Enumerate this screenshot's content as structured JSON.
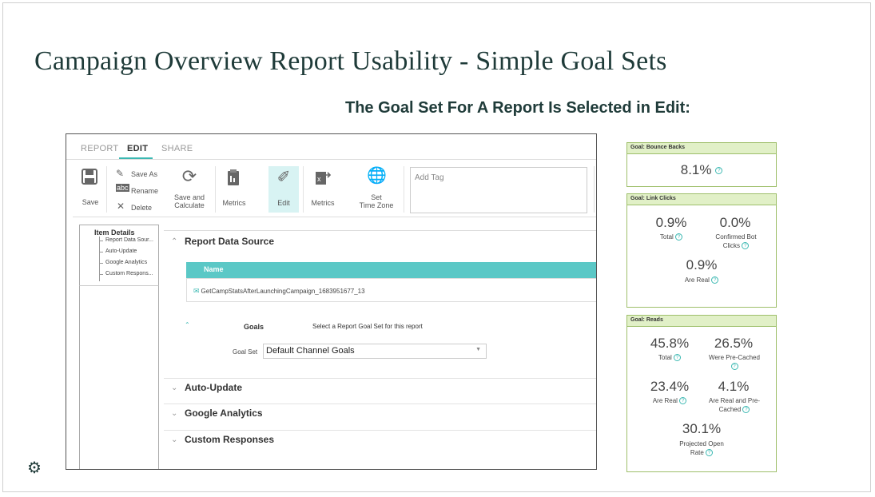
{
  "slide": {
    "title": "Campaign Overview Report Usability - Simple Goal Sets",
    "subtitle": "The Goal Set For A Report Is Selected in Edit:"
  },
  "app": {
    "tabs": [
      {
        "label": "REPORT",
        "active": false
      },
      {
        "label": "EDIT",
        "active": true
      },
      {
        "label": "SHARE",
        "active": false
      }
    ],
    "toolbar": {
      "save": "Save",
      "save_as": "Save As",
      "rename": "Rename",
      "delete": "Delete",
      "save_and_calculate_1": "Save and",
      "save_and_calculate_2": "Calculate",
      "metrics": "Metrics",
      "edit": "Edit",
      "metrics_2": "Metrics",
      "set_time_zone_1": "Set",
      "set_time_zone_2": "Time Zone",
      "add_tag_placeholder": "Add Tag"
    },
    "item_details": {
      "title": "Item Details",
      "items": [
        "Report Data Sour...",
        "Auto-Update",
        "Google Analytics",
        "Custom Respons..."
      ]
    },
    "sections": {
      "report_data_source": "Report Data Source",
      "table_header": "Name",
      "table_row": "GetCampStatsAfterLaunchingCampaign_1683951677_13",
      "goals_label": "Goals",
      "goals_desc": "Select a Report Goal Set for this report",
      "goal_set_label": "Goal Set",
      "goal_set_value": "Default Channel Goals",
      "auto_update": "Auto-Update",
      "google_analytics": "Google Analytics",
      "custom_responses": "Custom Responses"
    }
  },
  "goal_boxes": {
    "bounce": {
      "title": "Goal: Bounce Backs",
      "value": "8.1%"
    },
    "clicks": {
      "title": "Goal: Link Clicks",
      "total_value": "0.9%",
      "total_label": "Total",
      "bot_value": "0.0%",
      "bot_label_1": "Confirmed Bot",
      "bot_label_2": "Clicks",
      "real_value": "0.9%",
      "real_label": "Are Real"
    },
    "reads": {
      "title": "Goal: Reads",
      "total_value": "45.8%",
      "total_label": "Total",
      "precached_value": "26.5%",
      "precached_label": "Were Pre-Cached",
      "real_value": "23.4%",
      "real_label": "Are Real",
      "real_precached_value": "4.1%",
      "real_precached_label_1": "Are Real and Pre-",
      "real_precached_label_2": "Cached",
      "projected_value": "30.1%",
      "projected_label_1": "Projected Open",
      "projected_label_2": "Rate"
    }
  },
  "colors": {
    "accent": "#5bc8c6",
    "title": "#1f3b39",
    "goal_header": "#e1f0c7",
    "goal_border": "#9ebf6a"
  },
  "icons": {
    "help": "question-circle-icon",
    "settings": "gear-icon"
  }
}
